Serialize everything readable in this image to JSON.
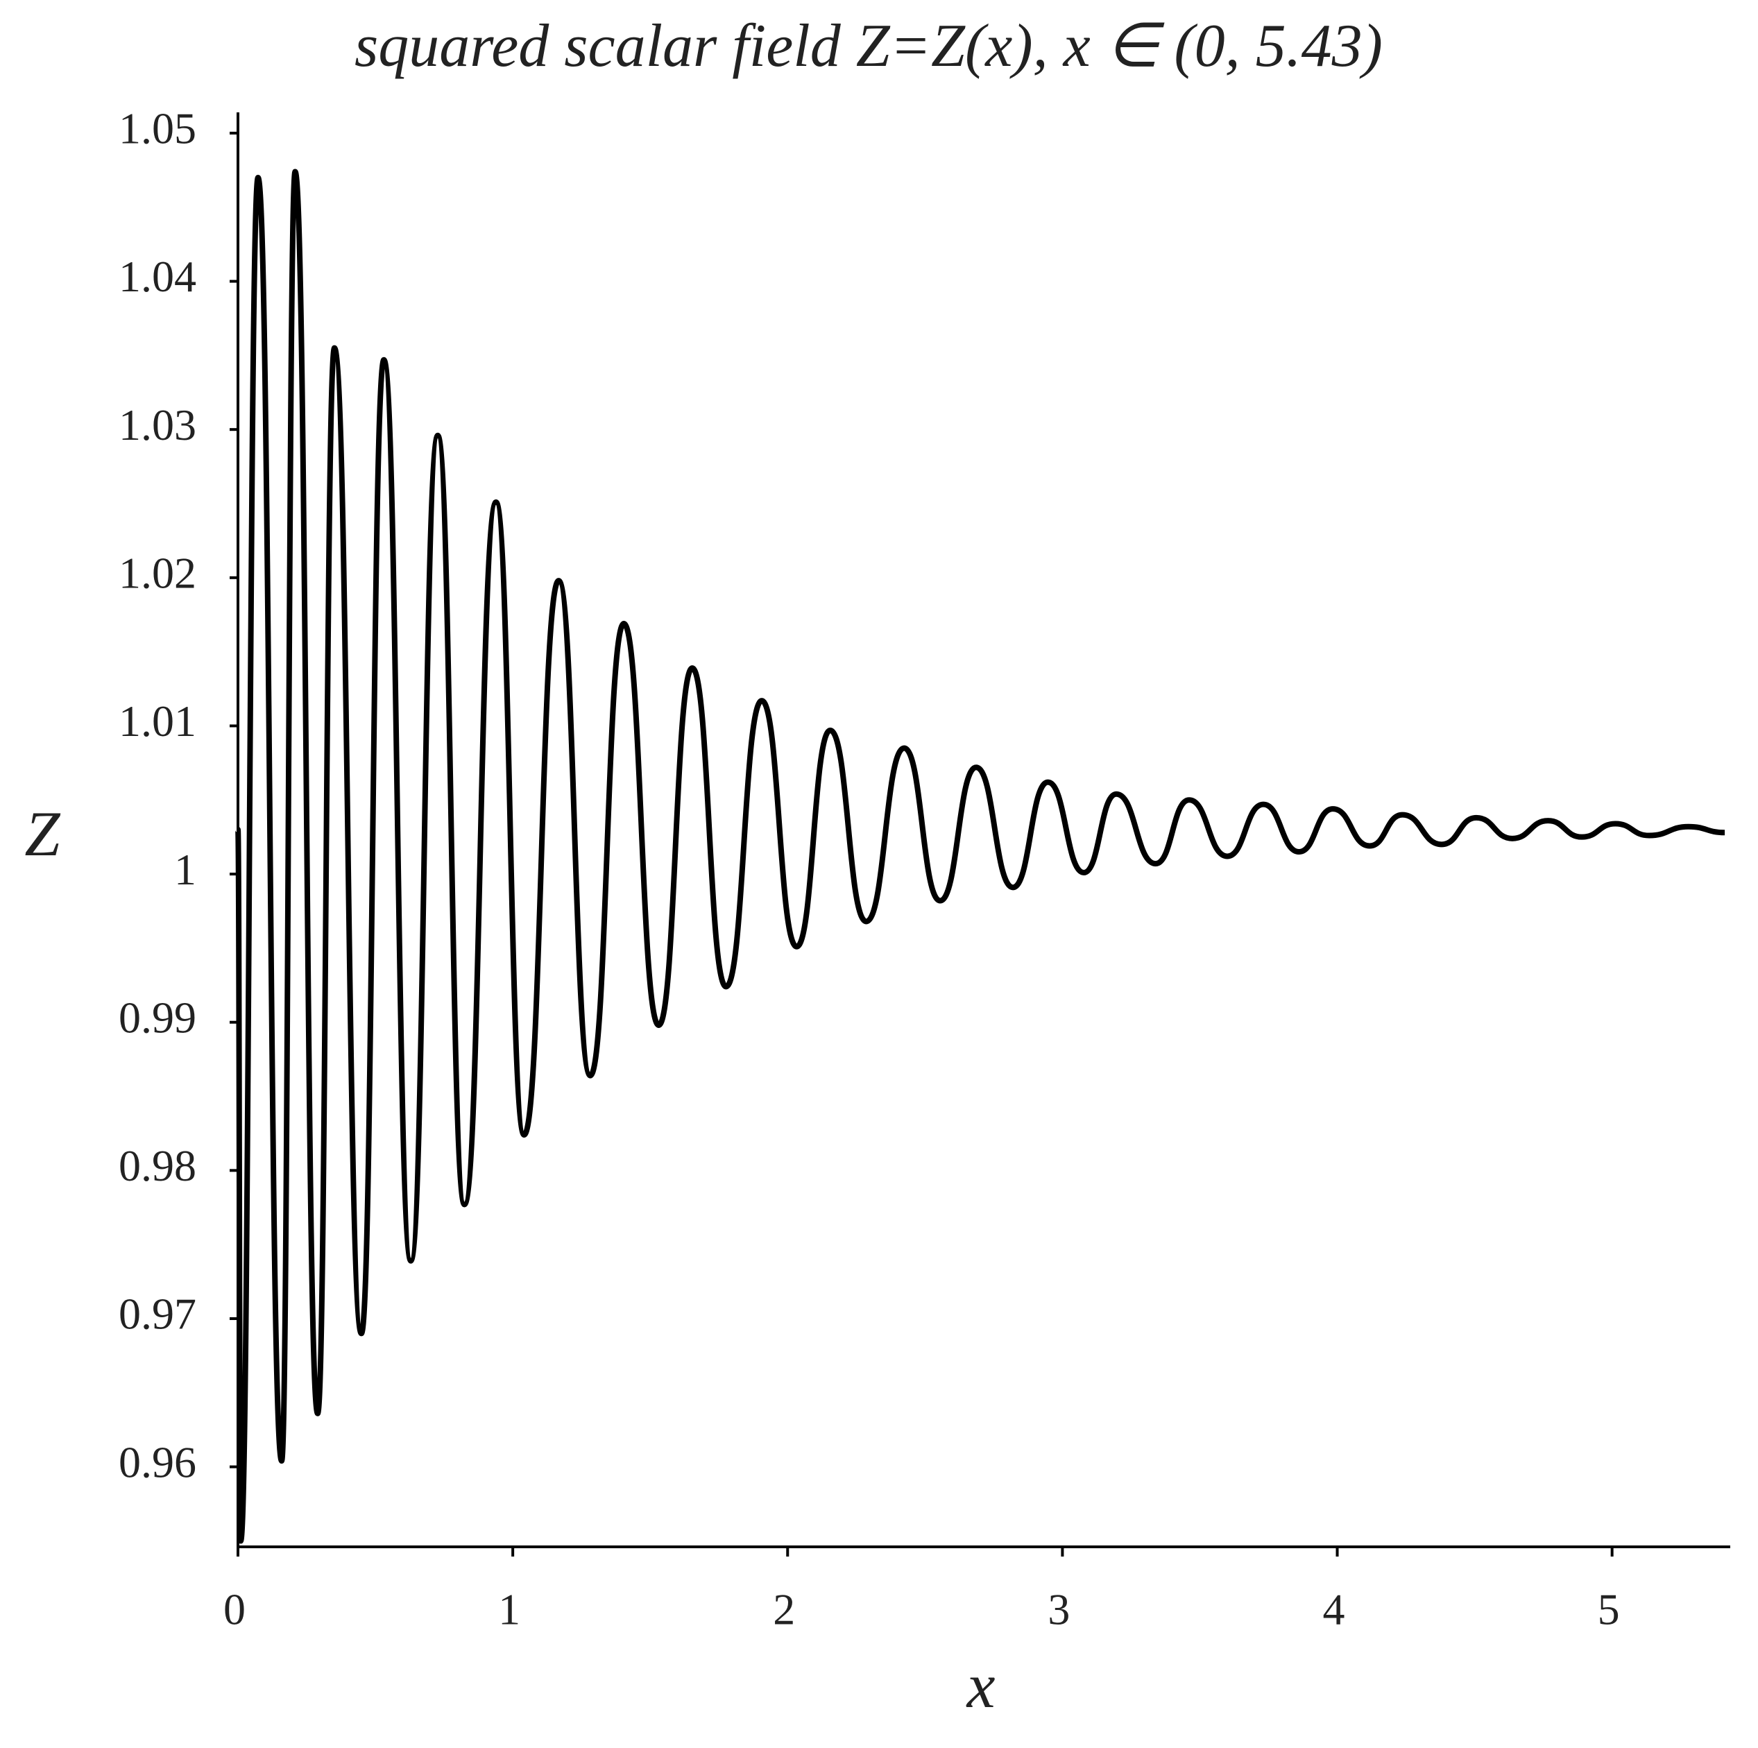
{
  "chart_data": {
    "type": "line",
    "title": "squared scalar field Z=Z(x), x ∈ (0, 5.43)",
    "x_label": "x",
    "y_label": "Z",
    "xlim": [
      0,
      5.43
    ],
    "ylim": [
      0.9546,
      1.0514
    ],
    "xticks": [
      0,
      1,
      2,
      3,
      4,
      5
    ],
    "yticks": [
      0.96,
      0.97,
      0.98,
      0.99,
      1,
      1.01,
      1.02,
      1.03,
      1.04,
      1.05
    ],
    "grid": false,
    "series": [
      {
        "name": "Z",
        "color": "#000000",
        "x": [
          0,
          0.01,
          0.073,
          0.159,
          0.208,
          0.29,
          0.351,
          0.449,
          0.531,
          0.629,
          0.727,
          0.824,
          0.939,
          1.041,
          1.167,
          1.282,
          1.404,
          1.531,
          1.653,
          1.776,
          1.906,
          2.033,
          2.155,
          2.286,
          2.424,
          2.555,
          2.686,
          2.82,
          2.947,
          3.078,
          3.196,
          3.339,
          3.461,
          3.6,
          3.731,
          3.861,
          3.984,
          4.118,
          4.237,
          4.38,
          4.506,
          4.637,
          4.767,
          4.89,
          5.012,
          5.135,
          5.278,
          5.41
        ],
        "values": [
          1.003,
          0.955,
          1.047,
          0.9604,
          1.0474,
          0.9636,
          1.0355,
          0.969,
          1.0347,
          0.9739,
          1.0296,
          0.9777,
          1.0251,
          0.9824,
          1.0198,
          0.9864,
          1.0169,
          0.9898,
          1.0139,
          0.9924,
          1.0117,
          0.9951,
          1.0097,
          0.9968,
          1.0085,
          0.9982,
          1.0072,
          0.9991,
          1.0062,
          1.0001,
          1.0054,
          1.0007,
          1.005,
          1.0012,
          1.0047,
          1.0015,
          1.0044,
          1.0019,
          1.004,
          1.002,
          1.0038,
          1.0024,
          1.0036,
          1.0025,
          1.0034,
          1.0026,
          1.0032,
          1.0028
        ]
      }
    ]
  }
}
